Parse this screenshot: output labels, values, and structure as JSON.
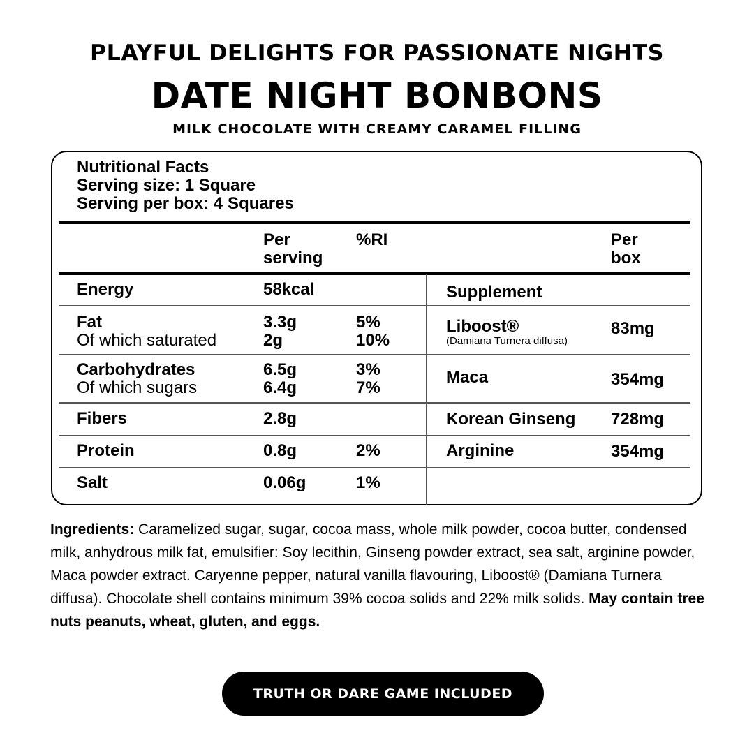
{
  "header": {
    "tagline": "PLAYFUL DELIGHTS FOR PASSIONATE NIGHTS",
    "title": "DATE NIGHT BONBONS",
    "subtitle": "MILK CHOCOLATE WITH CREAMY CARAMEL FILLING"
  },
  "facts": {
    "heading": "Nutritional Facts",
    "serving_size": "Serving size: 1 Square",
    "serving_per_box": "Serving per box: 4 Squares",
    "col_per_serving": [
      "Per",
      "serving"
    ],
    "col_ri": "%RI",
    "col_per_box": [
      "Per",
      "box"
    ],
    "nutrients": [
      {
        "label": "Energy",
        "value": "58kcal",
        "ri": ""
      },
      {
        "label": "Fat",
        "value": "3.3g",
        "ri": "5%",
        "sub_label": "Of which saturated",
        "sub_value": "2g",
        "sub_ri": "10%"
      },
      {
        "label": "Carbohydrates",
        "value": "6.5g",
        "ri": "3%",
        "sub_label": "Of which sugars",
        "sub_value": "6.4g",
        "sub_ri": "7%"
      },
      {
        "label": "Fibers",
        "value": "2.8g",
        "ri": ""
      },
      {
        "label": "Protein",
        "value": "0.8g",
        "ri": "2%"
      },
      {
        "label": "Salt",
        "value": "0.06g",
        "ri": "1%"
      }
    ],
    "supplement_heading": "Supplement",
    "supplements": [
      {
        "label": "Liboost®",
        "note": "(Damiana Turnera diffusa)",
        "value": "83mg"
      },
      {
        "label": "Maca",
        "value": "354mg"
      },
      {
        "label": "Korean Ginseng",
        "value": "728mg"
      },
      {
        "label": "Arginine",
        "value": "354mg"
      }
    ]
  },
  "ingredients": {
    "label": "Ingredients:",
    "text": " Caramelized sugar, sugar, cocoa mass, whole milk powder, cocoa butter, condensed milk, anhydrous milk fat, emulsifier: Soy lecithin, Ginseng powder extract, sea salt, arginine powder, Maca powder extract. Caryenne pepper, natural vanilla flavouring, Liboost® (Damiana Turnera diffusa). Chocolate shell contains minimum 39% cocoa solids and 22% milk solids. ",
    "allergens": "May contain tree nuts peanuts, wheat, gluten, and eggs."
  },
  "cta": {
    "label": "TRUTH OR DARE GAME INCLUDED"
  }
}
